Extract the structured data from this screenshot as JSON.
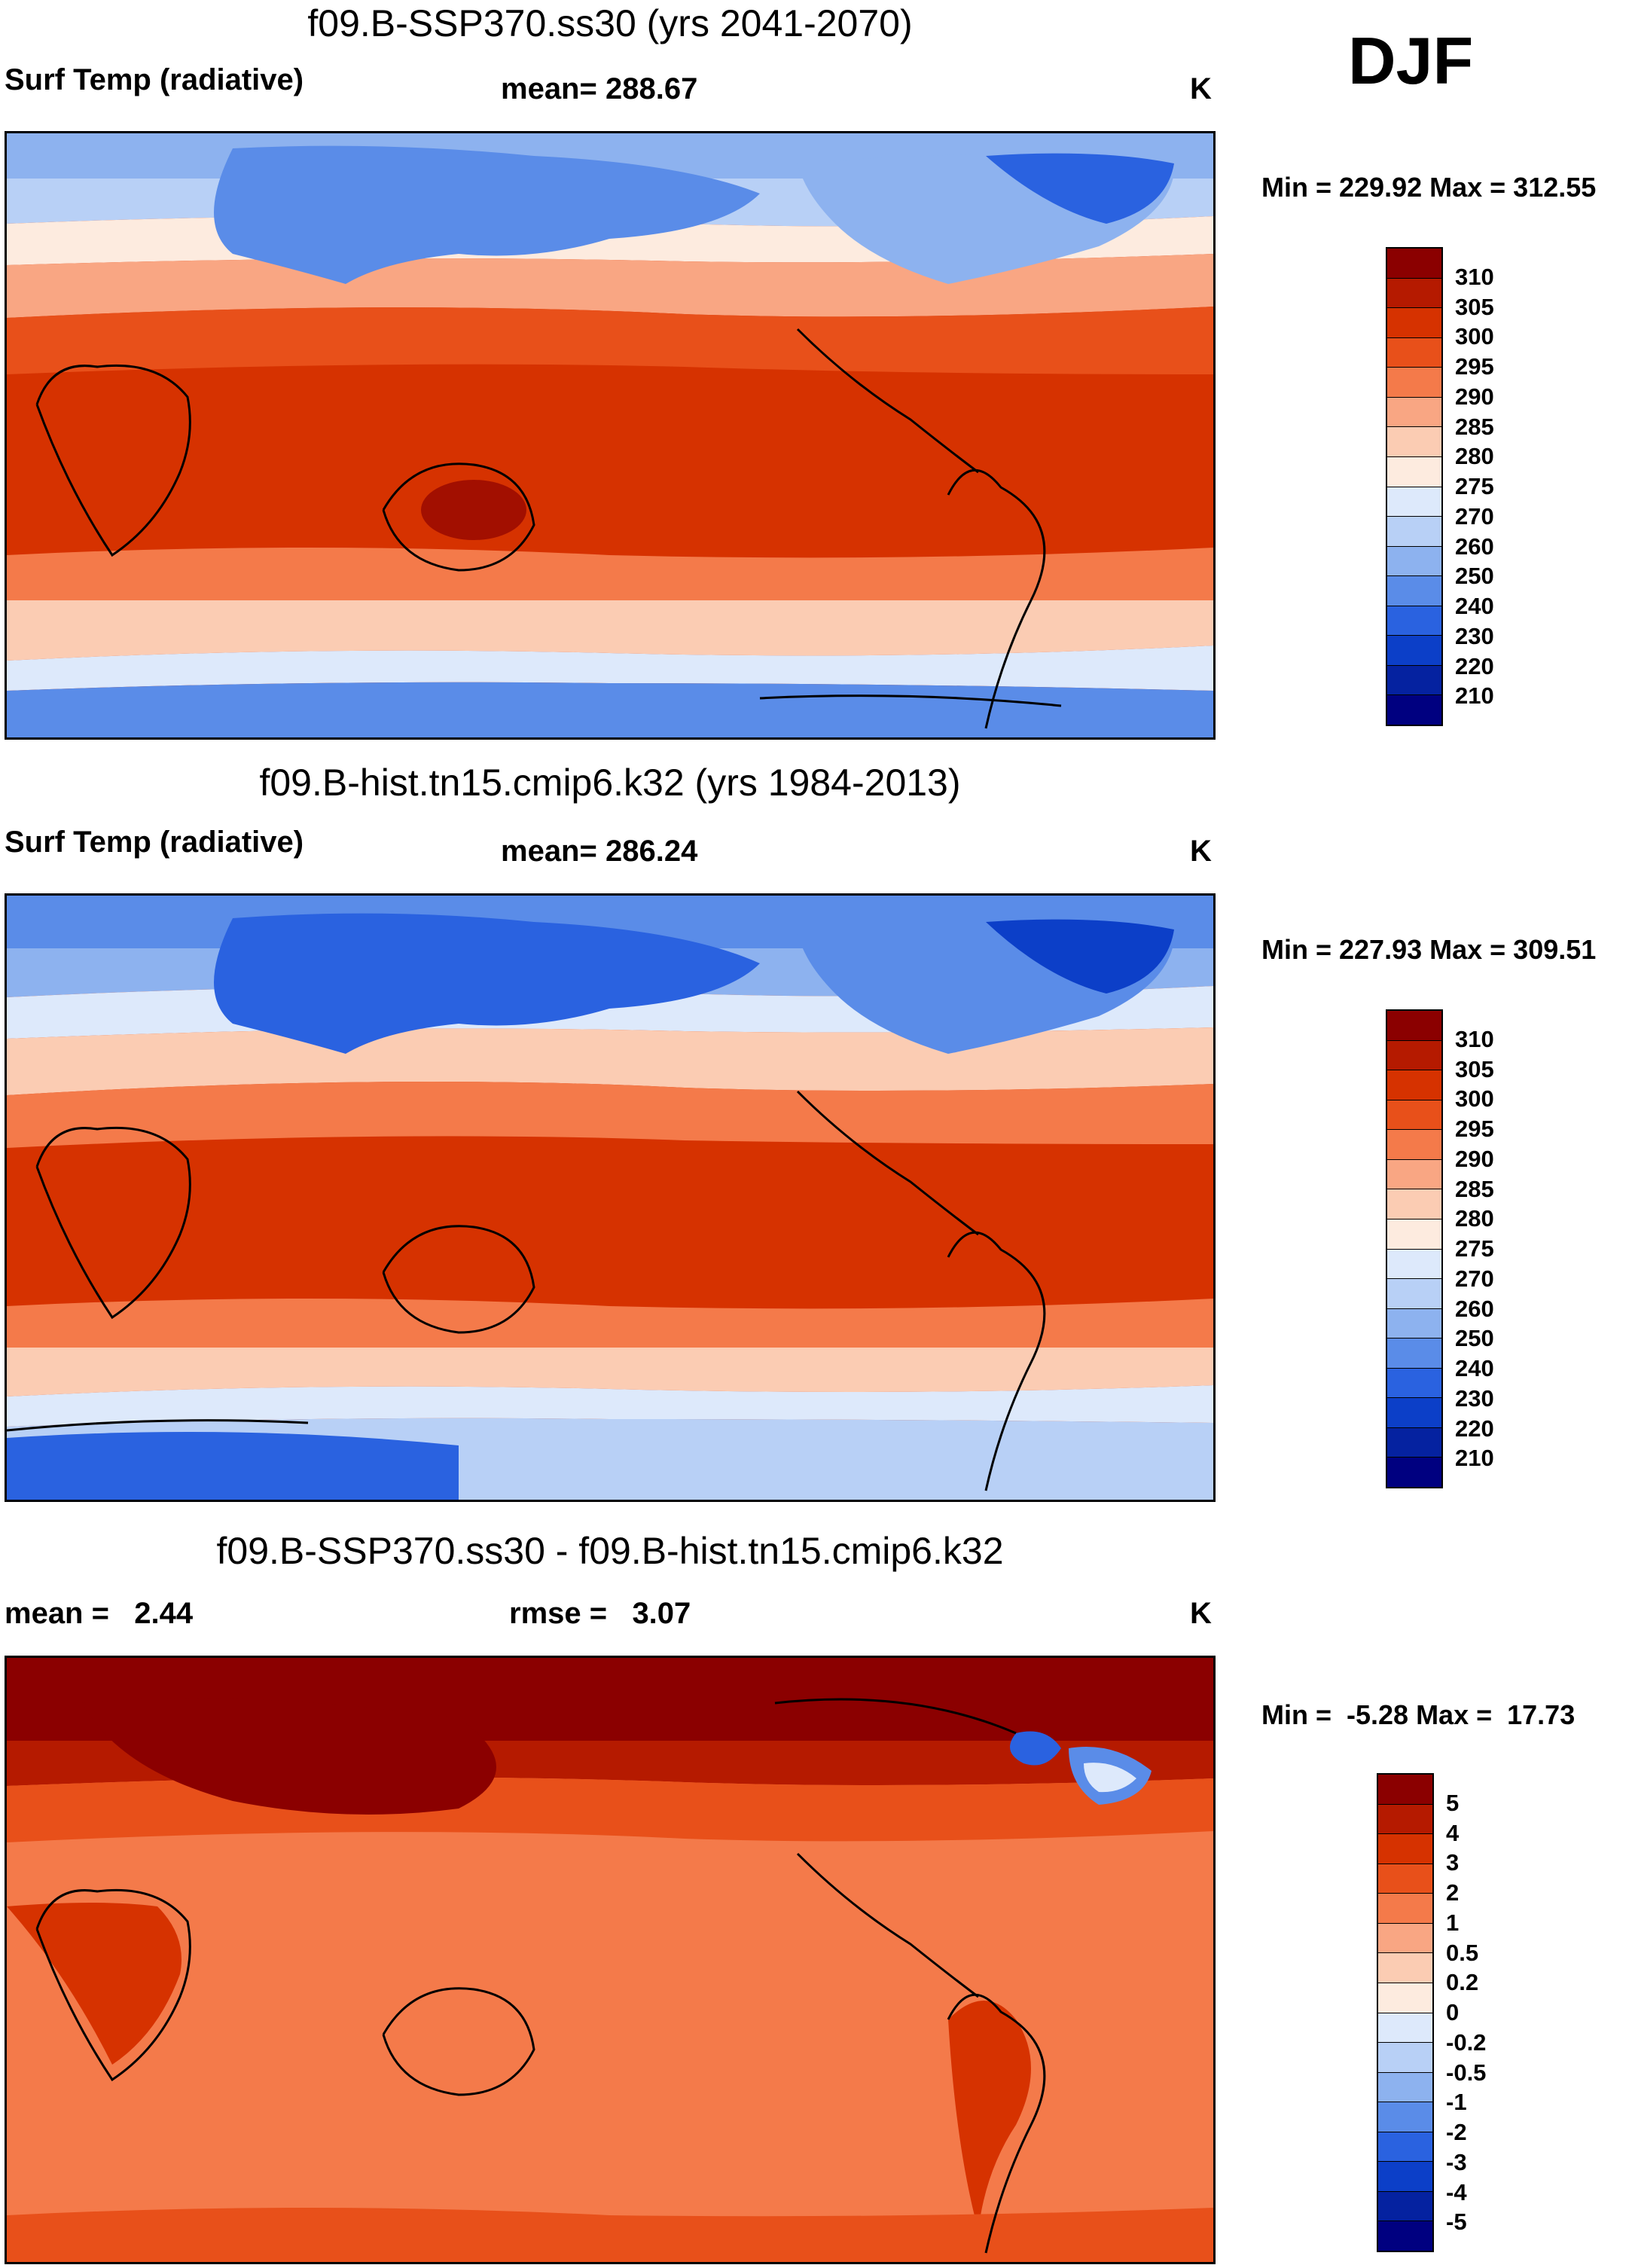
{
  "season": "DJF",
  "panels": [
    {
      "id": "panel-1",
      "title": "f09.B-SSP370.ss30 (yrs 2041-2070)",
      "left_label": "Surf Temp (radiative)",
      "mid_label": "mean= 288.67",
      "right_label": "K",
      "minmax": "Min = 229.92 Max = 312.55",
      "colorbar": {
        "labels": [
          "310",
          "305",
          "300",
          "295",
          "290",
          "285",
          "280",
          "275",
          "270",
          "260",
          "250",
          "240",
          "230",
          "220",
          "210"
        ],
        "colors": [
          "#8b0000",
          "#b51a00",
          "#d63200",
          "#e8501a",
          "#f47a4a",
          "#f9a683",
          "#fbccb3",
          "#fdebdf",
          "#dde9fb",
          "#b8d0f6",
          "#8db2ef",
          "#5a8ce8",
          "#2a62e0",
          "#0c3fc8",
          "#0522a0",
          "#000080"
        ]
      }
    },
    {
      "id": "panel-2",
      "title": "f09.B-hist.tn15.cmip6.k32 (yrs 1984-2013)",
      "left_label": "Surf Temp (radiative)",
      "mid_label": "mean= 286.24",
      "right_label": "K",
      "minmax": "Min = 227.93 Max = 309.51",
      "colorbar": {
        "labels": [
          "310",
          "305",
          "300",
          "295",
          "290",
          "285",
          "280",
          "275",
          "270",
          "260",
          "250",
          "240",
          "230",
          "220",
          "210"
        ],
        "colors": [
          "#8b0000",
          "#b51a00",
          "#d63200",
          "#e8501a",
          "#f47a4a",
          "#f9a683",
          "#fbccb3",
          "#fdebdf",
          "#dde9fb",
          "#b8d0f6",
          "#8db2ef",
          "#5a8ce8",
          "#2a62e0",
          "#0c3fc8",
          "#0522a0",
          "#000080"
        ]
      }
    },
    {
      "id": "panel-3",
      "title": "f09.B-SSP370.ss30 - f09.B-hist.tn15.cmip6.k32",
      "left_label": "mean =   2.44",
      "mid_label": "rmse =   3.07",
      "right_label": "K",
      "minmax": "Min =  -5.28 Max =  17.73",
      "colorbar": {
        "labels": [
          "5",
          "4",
          "3",
          "2",
          "1",
          "0.5",
          "0.2",
          "0",
          "-0.2",
          "-0.5",
          "-1",
          "-2",
          "-3",
          "-4",
          "-5"
        ],
        "colors": [
          "#8b0000",
          "#b51a00",
          "#d63200",
          "#e8501a",
          "#f47a4a",
          "#f9a683",
          "#fbccb3",
          "#fdebdf",
          "#dde9fb",
          "#b8d0f6",
          "#8db2ef",
          "#5a8ce8",
          "#2a62e0",
          "#0c3fc8",
          "#0522a0",
          "#000080"
        ]
      }
    }
  ]
}
